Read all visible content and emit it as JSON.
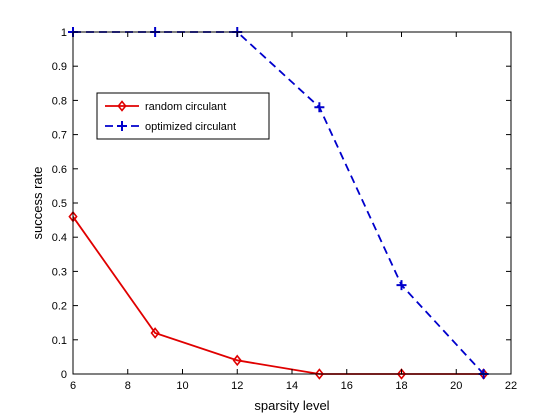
{
  "chart_data": {
    "type": "line",
    "title": "",
    "xlabel": "sparsity level",
    "ylabel": "success rate",
    "xlim": [
      6,
      22
    ],
    "ylim": [
      0,
      1
    ],
    "xticks": [
      6,
      8,
      10,
      12,
      14,
      16,
      18,
      20,
      22
    ],
    "yticks": [
      0,
      0.1,
      0.2,
      0.3,
      0.4,
      0.5,
      0.6,
      0.7,
      0.8,
      0.9,
      1
    ],
    "grid": false,
    "legend_position": "upper-left",
    "series": [
      {
        "name": "random circulant",
        "color": "#e00000",
        "line_style": "solid",
        "marker": "diamond",
        "x": [
          6,
          9,
          12,
          15,
          18,
          21
        ],
        "y": [
          0.46,
          0.12,
          0.04,
          0,
          0,
          0
        ]
      },
      {
        "name": "optimized circulant",
        "color": "#0000cc",
        "line_style": "dashed",
        "marker": "plus",
        "x": [
          6,
          9,
          12,
          15,
          18,
          21
        ],
        "y": [
          1,
          1,
          1,
          0.78,
          0.26,
          0
        ]
      }
    ]
  }
}
